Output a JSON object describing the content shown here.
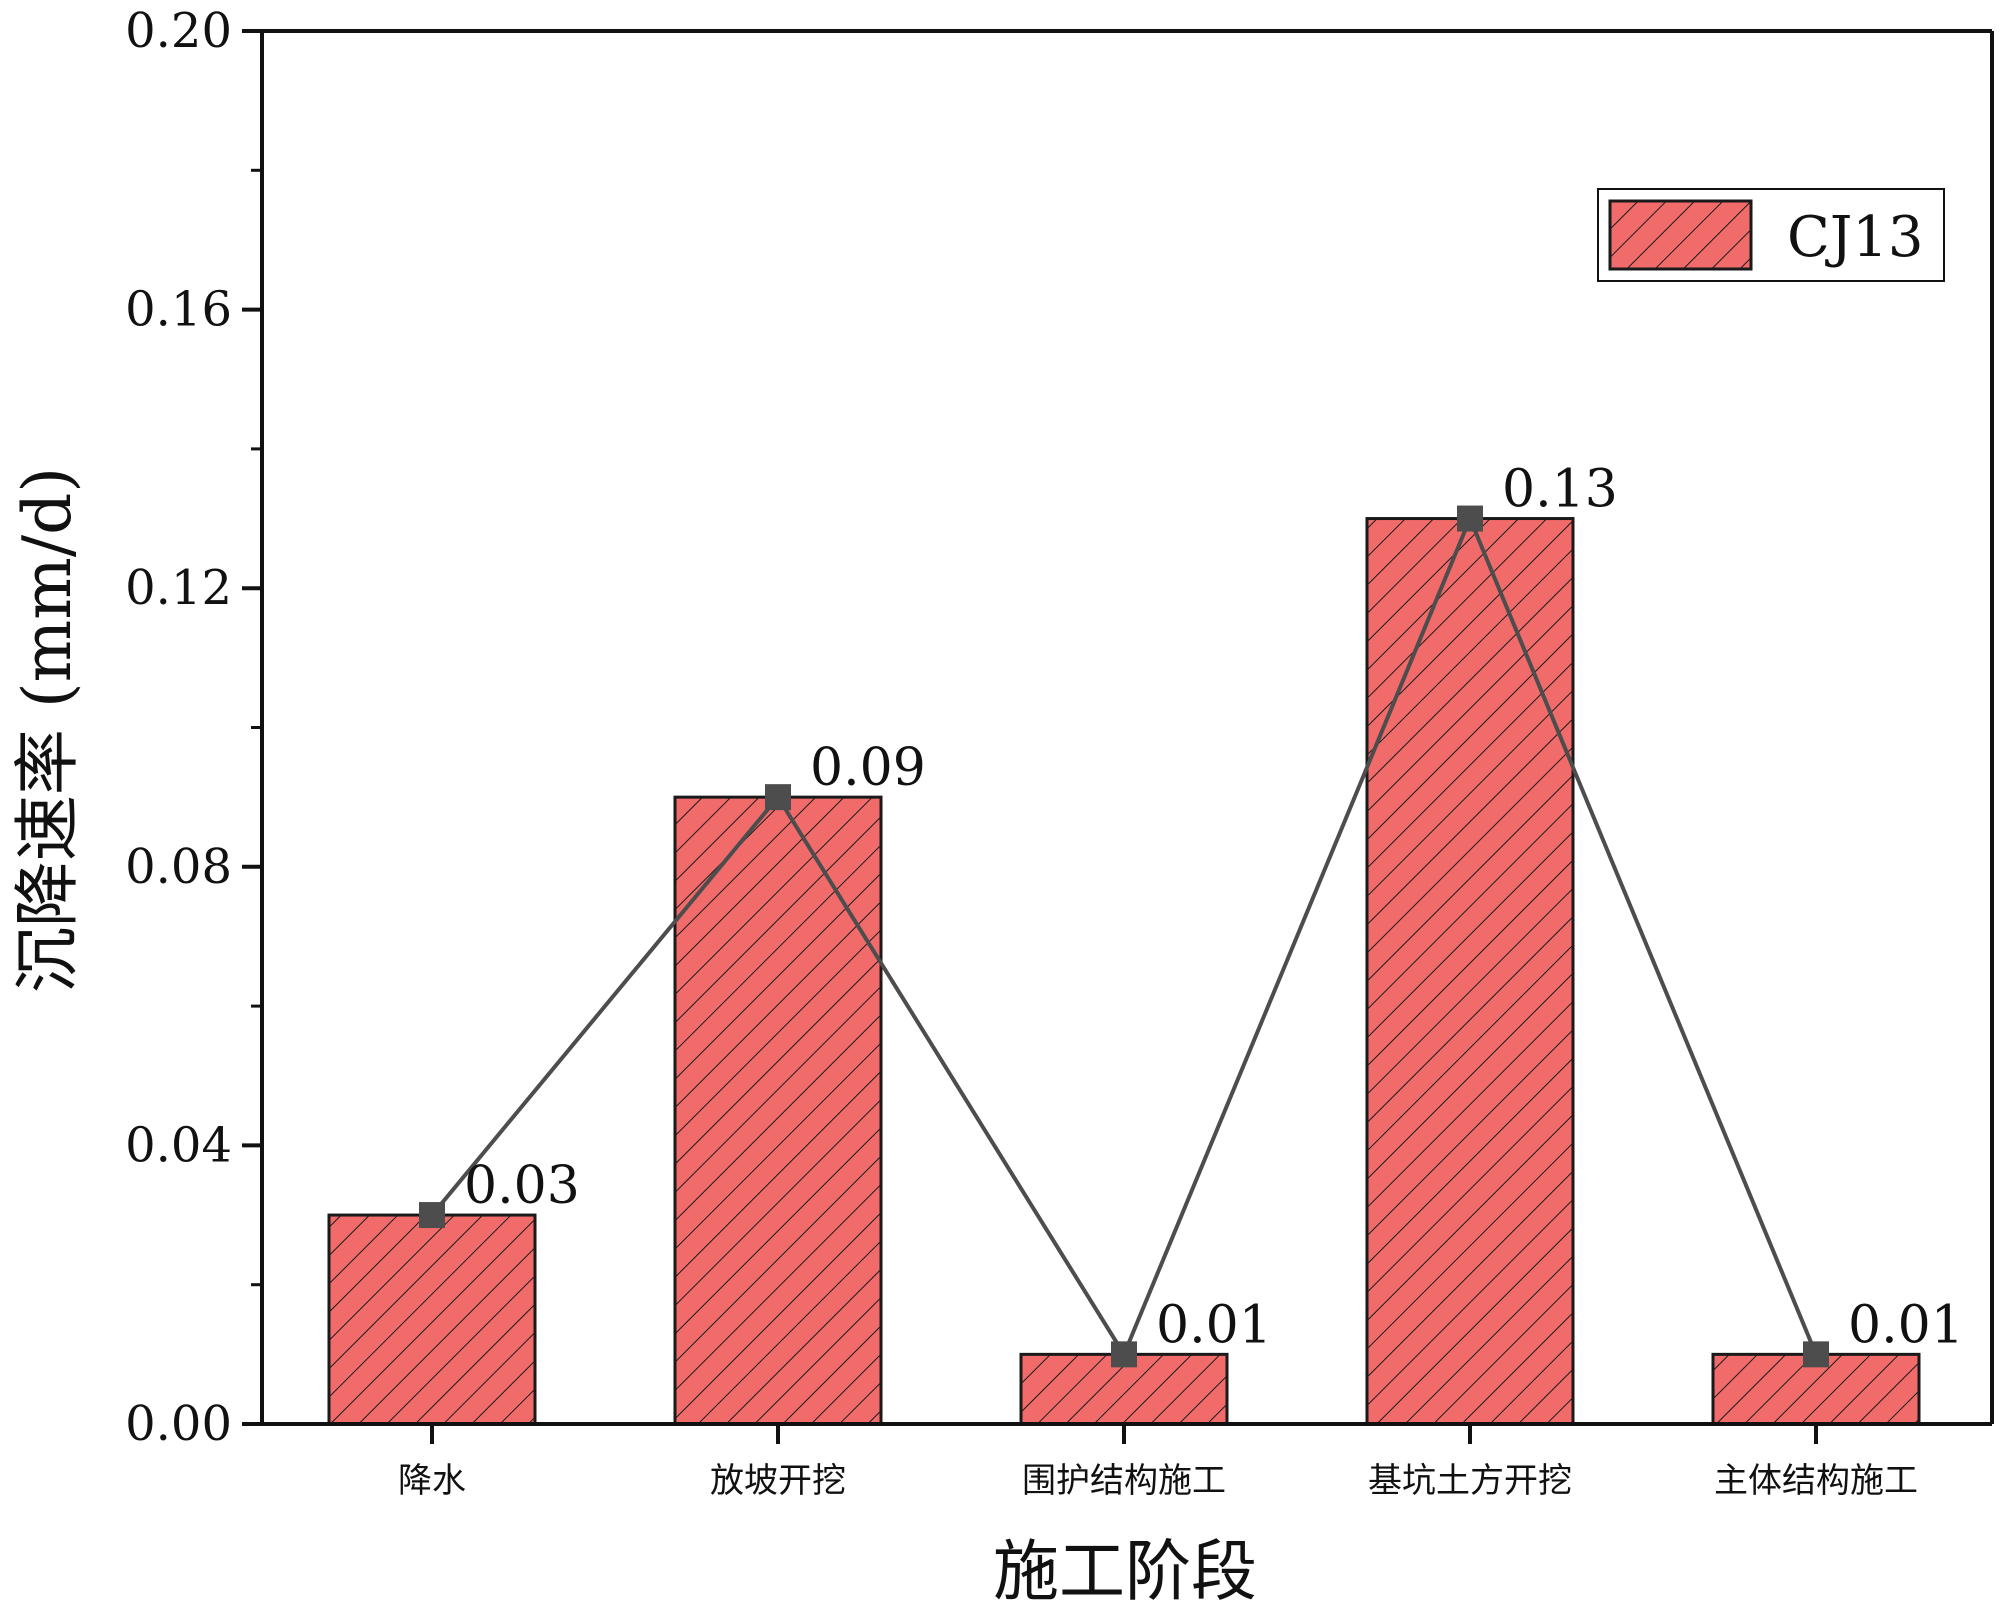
{
  "colors": {
    "bar_fill": "#f26b6b",
    "bar_stroke": "#1a1a1a",
    "hatch": "#1a1a1a",
    "line": "#4d4d4d",
    "marker": "#4d4d4d",
    "axis": "#111111"
  },
  "chart_data": {
    "type": "bar",
    "title": "",
    "xlabel": "施工阶段",
    "ylabel": "沉降速率 (mm/d)",
    "ylim": [
      0,
      0.2
    ],
    "yticks": [
      "0.00",
      "0.04",
      "0.08",
      "0.12",
      "0.16",
      "0.20"
    ],
    "grid": false,
    "legend_position": "top-right",
    "bar_pattern": "diagonal-hatch",
    "categories": [
      "降水",
      "放坡开挖",
      "围护结构施工",
      "基坑土方开挖",
      "主体结构施工"
    ],
    "series": [
      {
        "name": "CJ13",
        "values": [
          0.03,
          0.09,
          0.01,
          0.13,
          0.01
        ]
      }
    ],
    "overlay_line": {
      "type": "line",
      "marker": "square",
      "values": [
        0.03,
        0.09,
        0.01,
        0.13,
        0.01
      ]
    },
    "data_labels": [
      "0.03",
      "0.09",
      "0.01",
      "0.13",
      "0.01"
    ]
  }
}
